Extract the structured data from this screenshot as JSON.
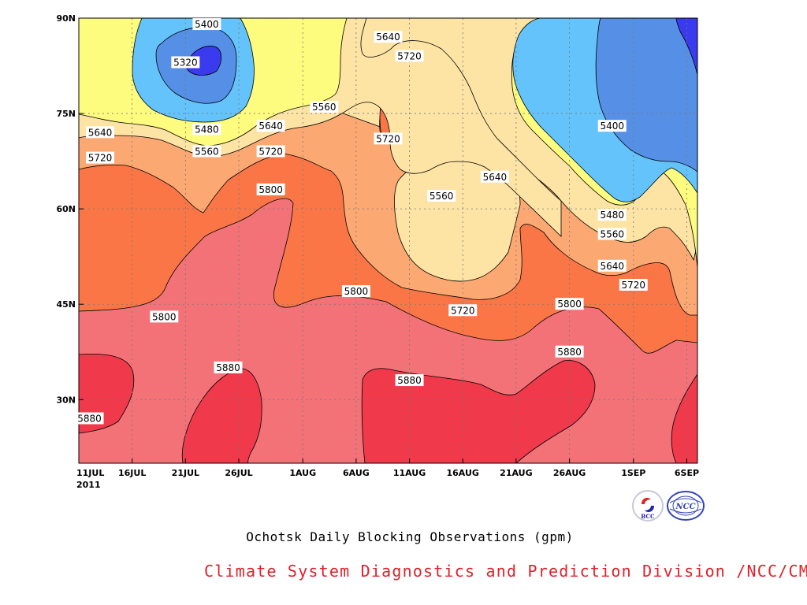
{
  "chart_data": {
    "type": "heatmap",
    "subtype": "filled-contour",
    "title": "Ochotsk Daily Blocking Observations (gpm)",
    "credit": "Climate System Diagnostics and Prediction Division /NCC/CMA",
    "year_label": "2011",
    "x_ticks": [
      "11JUL",
      "16JUL",
      "21JUL",
      "26JUL",
      "1AUG",
      "6AUG",
      "11AUG",
      "16AUG",
      "21AUG",
      "26AUG",
      "1SEP",
      "6SEP"
    ],
    "x_range": [
      "2011-07-11",
      "2011-09-07"
    ],
    "y_ticks": [
      "90N",
      "75N",
      "60N",
      "45N",
      "30N"
    ],
    "y_range": [
      20,
      90
    ],
    "grid": true,
    "levels": [
      5320,
      5400,
      5480,
      5560,
      5640,
      5720,
      5800,
      5880
    ],
    "colors": {
      "below_5320": "#3a3aef",
      "5320_5400": "#5590e6",
      "5400_5480": "#63c3fa",
      "5480_5560": "#fdfc7e",
      "5560_5640": "#fde3a4",
      "5640_5720": "#fca872",
      "5720_5800": "#fa7646",
      "5800_5880": "#f27278",
      "above_5880": "#f0394a"
    },
    "contour_labels": [
      {
        "value": "5400",
        "date": "2011-07-23",
        "lat": 89
      },
      {
        "value": "5320",
        "date": "2011-07-21",
        "lat": 83
      },
      {
        "value": "5480",
        "date": "2011-07-23",
        "lat": 72.5
      },
      {
        "value": "5560",
        "date": "2011-07-23",
        "lat": 69
      },
      {
        "value": "5640",
        "date": "2011-07-13",
        "lat": 72
      },
      {
        "value": "5720",
        "date": "2011-07-13",
        "lat": 68
      },
      {
        "value": "5640",
        "date": "2011-07-29",
        "lat": 73
      },
      {
        "value": "5560",
        "date": "2011-08-03",
        "lat": 76
      },
      {
        "value": "5720",
        "date": "2011-07-29",
        "lat": 69
      },
      {
        "value": "5800",
        "date": "2011-07-29",
        "lat": 63
      },
      {
        "value": "5640",
        "date": "2011-08-09",
        "lat": 87
      },
      {
        "value": "5720",
        "date": "2011-08-11",
        "lat": 84
      },
      {
        "value": "5720",
        "date": "2011-08-09",
        "lat": 71
      },
      {
        "value": "5560",
        "date": "2011-08-14",
        "lat": 62
      },
      {
        "value": "5640",
        "date": "2011-08-19",
        "lat": 65
      },
      {
        "value": "5400",
        "date": "2011-08-30",
        "lat": 73
      },
      {
        "value": "5480",
        "date": "2011-08-30",
        "lat": 59
      },
      {
        "value": "5560",
        "date": "2011-08-30",
        "lat": 56
      },
      {
        "value": "5640",
        "date": "2011-08-30",
        "lat": 51
      },
      {
        "value": "5720",
        "date": "2011-09-01",
        "lat": 48
      },
      {
        "value": "5800",
        "date": "2011-07-19",
        "lat": 43
      },
      {
        "value": "5800",
        "date": "2011-08-06",
        "lat": 47
      },
      {
        "value": "5720",
        "date": "2011-08-16",
        "lat": 44
      },
      {
        "value": "5800",
        "date": "2011-08-26",
        "lat": 45
      },
      {
        "value": "5880",
        "date": "2011-08-26",
        "lat": 37.5
      },
      {
        "value": "5880",
        "date": "2011-07-25",
        "lat": 35
      },
      {
        "value": "5880",
        "date": "2011-08-11",
        "lat": 33
      },
      {
        "value": "5880",
        "date": "2011-07-12",
        "lat": 27
      }
    ]
  },
  "logos": {
    "left": "bcc-logo",
    "right": "ncc-logo",
    "left_text": "BCC",
    "right_text": "NCC"
  }
}
